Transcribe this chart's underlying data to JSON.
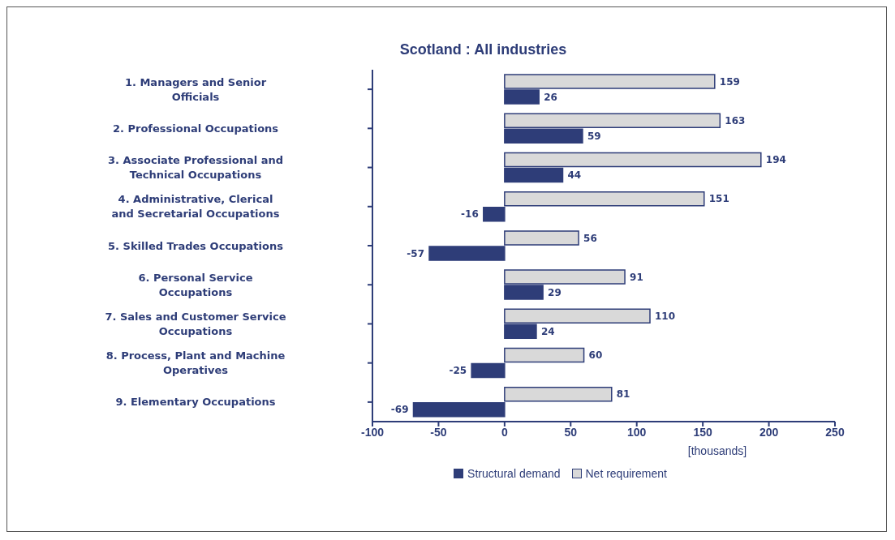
{
  "chart_data": {
    "type": "bar",
    "orientation": "horizontal",
    "title": "Scotland : All industries",
    "xlabel": "[thousands]",
    "categories": [
      "1. Managers and Senior Officials",
      "2. Professional Occupations",
      "3. Associate Professional and Technical Occupations",
      "4. Administrative, Clerical and Secretarial Occupations",
      "5. Skilled Trades Occupations",
      "6. Personal Service Occupations",
      "7. Sales and Customer Service Occupations",
      "8. Process, Plant and Machine Operatives",
      "9. Elementary Occupations"
    ],
    "series": [
      {
        "name": "Structural demand",
        "color": "#2e3d78",
        "values": [
          26,
          59,
          44,
          -16,
          -57,
          29,
          24,
          -25,
          -69
        ]
      },
      {
        "name": "Net requirement",
        "color": "#d9d9d9",
        "values": [
          159,
          163,
          194,
          151,
          56,
          91,
          110,
          60,
          81
        ]
      }
    ],
    "xlim": [
      -100,
      250
    ],
    "xticks": [
      -100,
      -50,
      0,
      50,
      100,
      150,
      200,
      250
    ],
    "data_labels": true,
    "grid": false,
    "legend": "bottom"
  }
}
